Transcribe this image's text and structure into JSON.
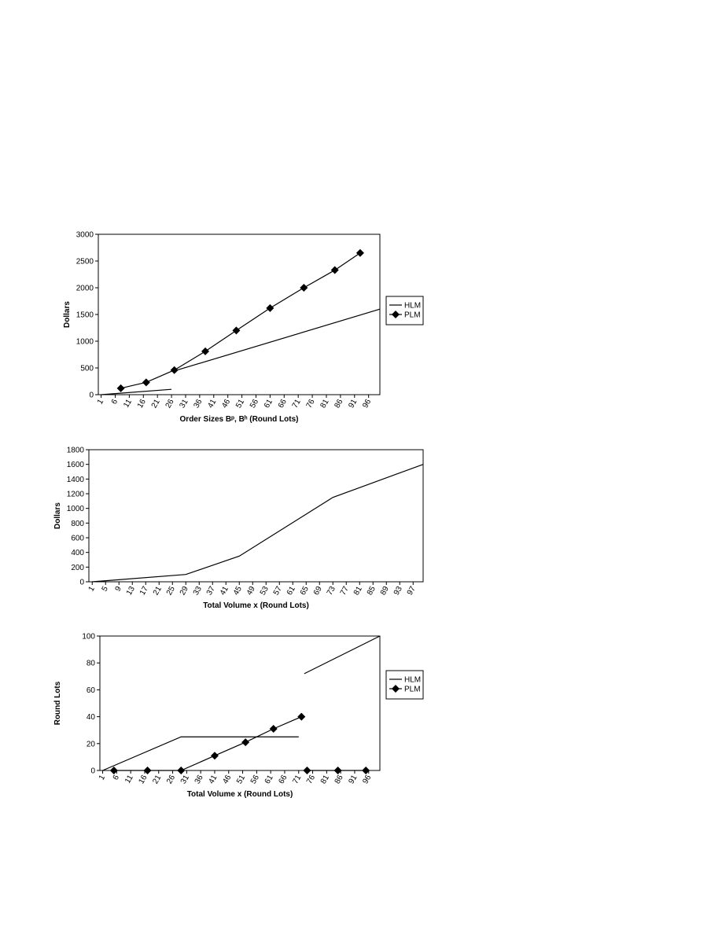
{
  "chart_data": [
    {
      "type": "line",
      "ylabel": "Dollars",
      "xlabel": "Order Sizes Bᵖ, Bʰ (Round Lots)",
      "xlim": [
        0,
        100
      ],
      "xticks": [
        1,
        6,
        11,
        16,
        21,
        26,
        31,
        36,
        41,
        46,
        51,
        56,
        61,
        66,
        71,
        76,
        81,
        86,
        91,
        96
      ],
      "ylim": [
        0,
        3000
      ],
      "yticks": [
        0,
        500,
        1000,
        1500,
        2000,
        2500,
        3000
      ],
      "legend": "right",
      "series": [
        {
          "name": "HLM",
          "color": "#000000",
          "marker": "none",
          "x": [
            1,
            26,
            27,
            28,
            100
          ],
          "values": [
            0,
            100,
            null,
            460,
            1600
          ]
        },
        {
          "name": "PLM",
          "color": "#000000",
          "marker": "diamond",
          "x": [
            8,
            17,
            27,
            38,
            49,
            61,
            73,
            84,
            93
          ],
          "values": [
            120,
            230,
            460,
            810,
            1200,
            1620,
            2000,
            2330,
            2650
          ]
        }
      ]
    },
    {
      "type": "line",
      "ylabel": "Dollars",
      "xlabel": "Total Volume x (Round Lots)",
      "xlim": [
        0,
        100
      ],
      "xticks": [
        1,
        5,
        9,
        13,
        17,
        21,
        25,
        29,
        33,
        37,
        41,
        45,
        49,
        53,
        57,
        61,
        65,
        69,
        73,
        77,
        81,
        85,
        89,
        93,
        97
      ],
      "ylim": [
        0,
        1800
      ],
      "yticks": [
        0,
        200,
        400,
        600,
        800,
        1000,
        1200,
        1400,
        1600,
        1800
      ],
      "x": [
        1,
        29,
        45,
        73,
        100
      ],
      "values": [
        0,
        100,
        350,
        1150,
        1600
      ]
    },
    {
      "type": "line",
      "ylabel": "Round Lots",
      "xlabel": "Total Volume x (Round Lots)",
      "xlim": [
        0,
        100
      ],
      "xticks": [
        1,
        6,
        11,
        16,
        21,
        26,
        31,
        36,
        41,
        46,
        51,
        56,
        61,
        66,
        71,
        76,
        81,
        86,
        91,
        96
      ],
      "ylim": [
        0,
        100
      ],
      "yticks": [
        0,
        20,
        40,
        60,
        80,
        100
      ],
      "legend": "right",
      "series": [
        {
          "name": "HLM",
          "color": "#000000",
          "marker": "none",
          "x": [
            1,
            29,
            71,
            72,
            73,
            100
          ],
          "values": [
            0,
            25,
            25,
            null,
            72,
            100
          ]
        },
        {
          "name": "PLM",
          "color": "#000000",
          "marker": "diamond",
          "x": [
            5,
            17,
            29,
            41,
            52,
            62,
            72,
            73,
            74,
            85,
            95
          ],
          "values": [
            0,
            0,
            0,
            11,
            21,
            31,
            40,
            null,
            0,
            0,
            0
          ]
        }
      ]
    }
  ]
}
